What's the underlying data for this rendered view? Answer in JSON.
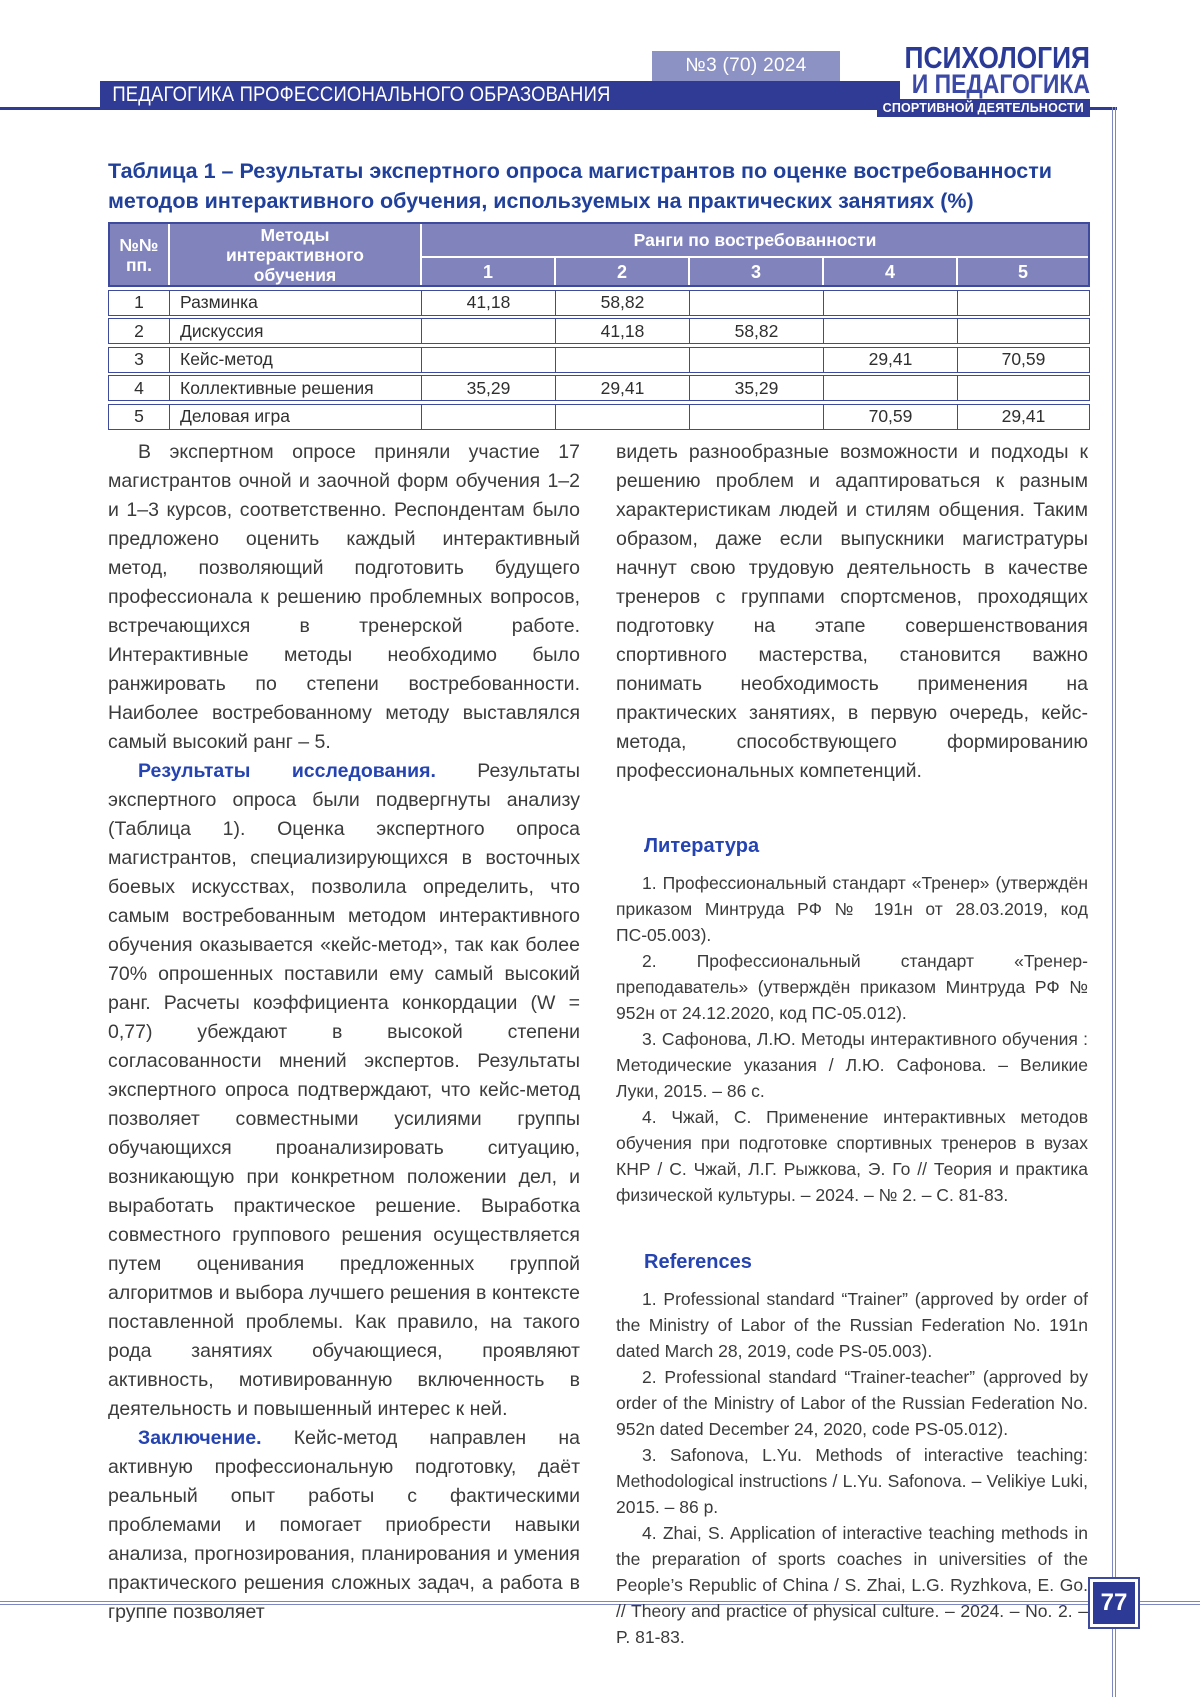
{
  "header": {
    "issue_badge": "№3 (70) 2024",
    "section_band": "ПЕДАГОГИКА ПРОФЕССИОНАЛЬНОГО ОБРАЗОВАНИЯ",
    "logo": {
      "line1": "ПСИХОЛОГИЯ",
      "line2": "И ПЕДАГОГИКА",
      "line3": "СПОРТИВНОЙ ДЕЯТЕЛЬНОСТИ"
    },
    "accent_color": "#2f3b95"
  },
  "table": {
    "caption": "Таблица 1 – Результаты экспертного опроса магистрантов по оценке востребованности методов интерактивного обучения, используемых на практических занятиях (%)",
    "col_num_header": "№№ пп.",
    "col_method_header": "Методы интерактивного обучения",
    "ranks_header": "Ранги по востребованности",
    "rank_cols": [
      "1",
      "2",
      "3",
      "4",
      "5"
    ],
    "header_bg": "#8184bc",
    "border_color": "#3d4a9e",
    "rows": [
      {
        "num": "1",
        "method": "Разминка",
        "r1": "41,18",
        "r2": "58,82",
        "r3": "",
        "r4": "",
        "r5": ""
      },
      {
        "num": "2",
        "method": "Дискуссия",
        "r1": "",
        "r2": "41,18",
        "r3": "58,82",
        "r4": "",
        "r5": ""
      },
      {
        "num": "3",
        "method": "Кейс-метод",
        "r1": "",
        "r2": "",
        "r3": "",
        "r4": "29,41",
        "r5": "70,59"
      },
      {
        "num": "4",
        "method": "Коллективные решения",
        "r1": "35,29",
        "r2": "29,41",
        "r3": "35,29",
        "r4": "",
        "r5": ""
      },
      {
        "num": "5",
        "method": "Деловая игра",
        "r1": "",
        "r2": "",
        "r3": "",
        "r4": "70,59",
        "r5": "29,41"
      }
    ]
  },
  "article": {
    "left": {
      "para1": "В экспертном опросе приняли участие 17 магистрантов очной и заочной форм обучения 1–2 и 1–3 курсов, соответственно. Респондентам было предложено оценить каждый интерактивный метод, позволяющий подготовить будущего профессионала к решению проблемных вопросов, встречающихся в тренерской работе. Интерактивные методы необходимо было ранжировать по степени востребованности. Наиболее востребованному методу выставлялся самый высокий ранг – 5.",
      "results_lead": "Результаты исследования.",
      "para2": " Результаты экспертного опроса были подвергнуты анализу (Таблица 1). Оценка экспертного опроса магистрантов, специализирующихся в восточных боевых искусствах, позволила определить, что самым востребованным методом интерактивного обучения оказывается «кейс-метод», так как более 70% опрошенных поставили ему самый высокий ранг. Расчеты коэффициента конкордации (W = 0,77) убеждают в высокой степени согласованности мнений экспертов. Результаты экспертного опроса подтверждают, что кейс-метод позволяет совместными усилиями группы обучающихся проанализировать ситуацию, возникающую при конкретном положении дел, и выработать практическое решение. Выработка совместного группового решения осуществляется путем оценивания предложенных группой алгоритмов и выбора лучшего решения в контексте поставленной проблемы. Как правило, на такого рода занятиях обучающиеся, проявляют активность, мотивированную включенность в деятельность и повышенный интерес к ней.",
      "conclusion_lead": "Заключение.",
      "para3": " Кейс-метод направлен на активную профессиональную подготовку, даёт реальный опыт работы с фактическими проблемами и помогает приобрести навыки анализа, прогнозирования, планирования и умения практического решения сложных задач, а работа в группе позволяет"
    },
    "right": {
      "para1": "видеть разнообразные возможности и подходы к решению проблем и адаптироваться к разным характеристикам людей и стилям общения. Таким образом, даже если выпускники магистратуры начнут свою трудовую деятельность в качестве тренеров с группами спортсменов, проходящих подготовку на этапе совершенствования спортивного мастерства, становится важно понимать необходимость применения на практических занятиях, в первую очередь, кейс-метода, способствующего формированию профессиональных компетенций."
    }
  },
  "literature": {
    "heading": "Литература",
    "items": [
      "1. Профессиональный стандарт «Тренер» (утверждён приказом Минтруда РФ № 191н от 28.03.2019, код ПС-05.003).",
      "2. Профессиональный стандарт «Тренер-преподаватель» (утверждён приказом Минтруда РФ № 952н от 24.12.2020, код ПС-05.012).",
      "3. Сафонова, Л.Ю. Методы интерактивного обучения : Методические указания / Л.Ю. Сафонова. – Великие Луки, 2015. – 86 с.",
      "4. Чжай, С. Применение интерактивных методов обучения при подготовке спортивных тренеров в вузах КНР / С. Чжай, Л.Г. Рыжкова, Э. Го // Теория и практика физической культуры. – 2024. – № 2. – С. 81-83."
    ]
  },
  "references": {
    "heading": "References",
    "items": [
      "1. Professional standard “Trainer” (approved by order of the Ministry of Labor of the Russian Federation No. 191n dated March 28, 2019, code PS-05.003).",
      "2. Professional standard “Trainer-teacher” (approved by order of the Ministry of Labor of the Russian Federation No. 952n dated December 24, 2020, code PS-05.012).",
      "3. Safonova, L.Yu. Methods of interactive teaching: Methodological instructions / L.Yu. Safonova. – Velikiye Luki, 2015. – 86 p.",
      "4. Zhai, S. Application of interactive teaching methods in the preparation of sports coaches in universities of the People’s Republic of China / S. Zhai, L.G. Ryzhkova, E. Go. // Theory and practice of physical culture. – 2024. – No. 2. – P. 81-83."
    ]
  },
  "page_number": "77"
}
